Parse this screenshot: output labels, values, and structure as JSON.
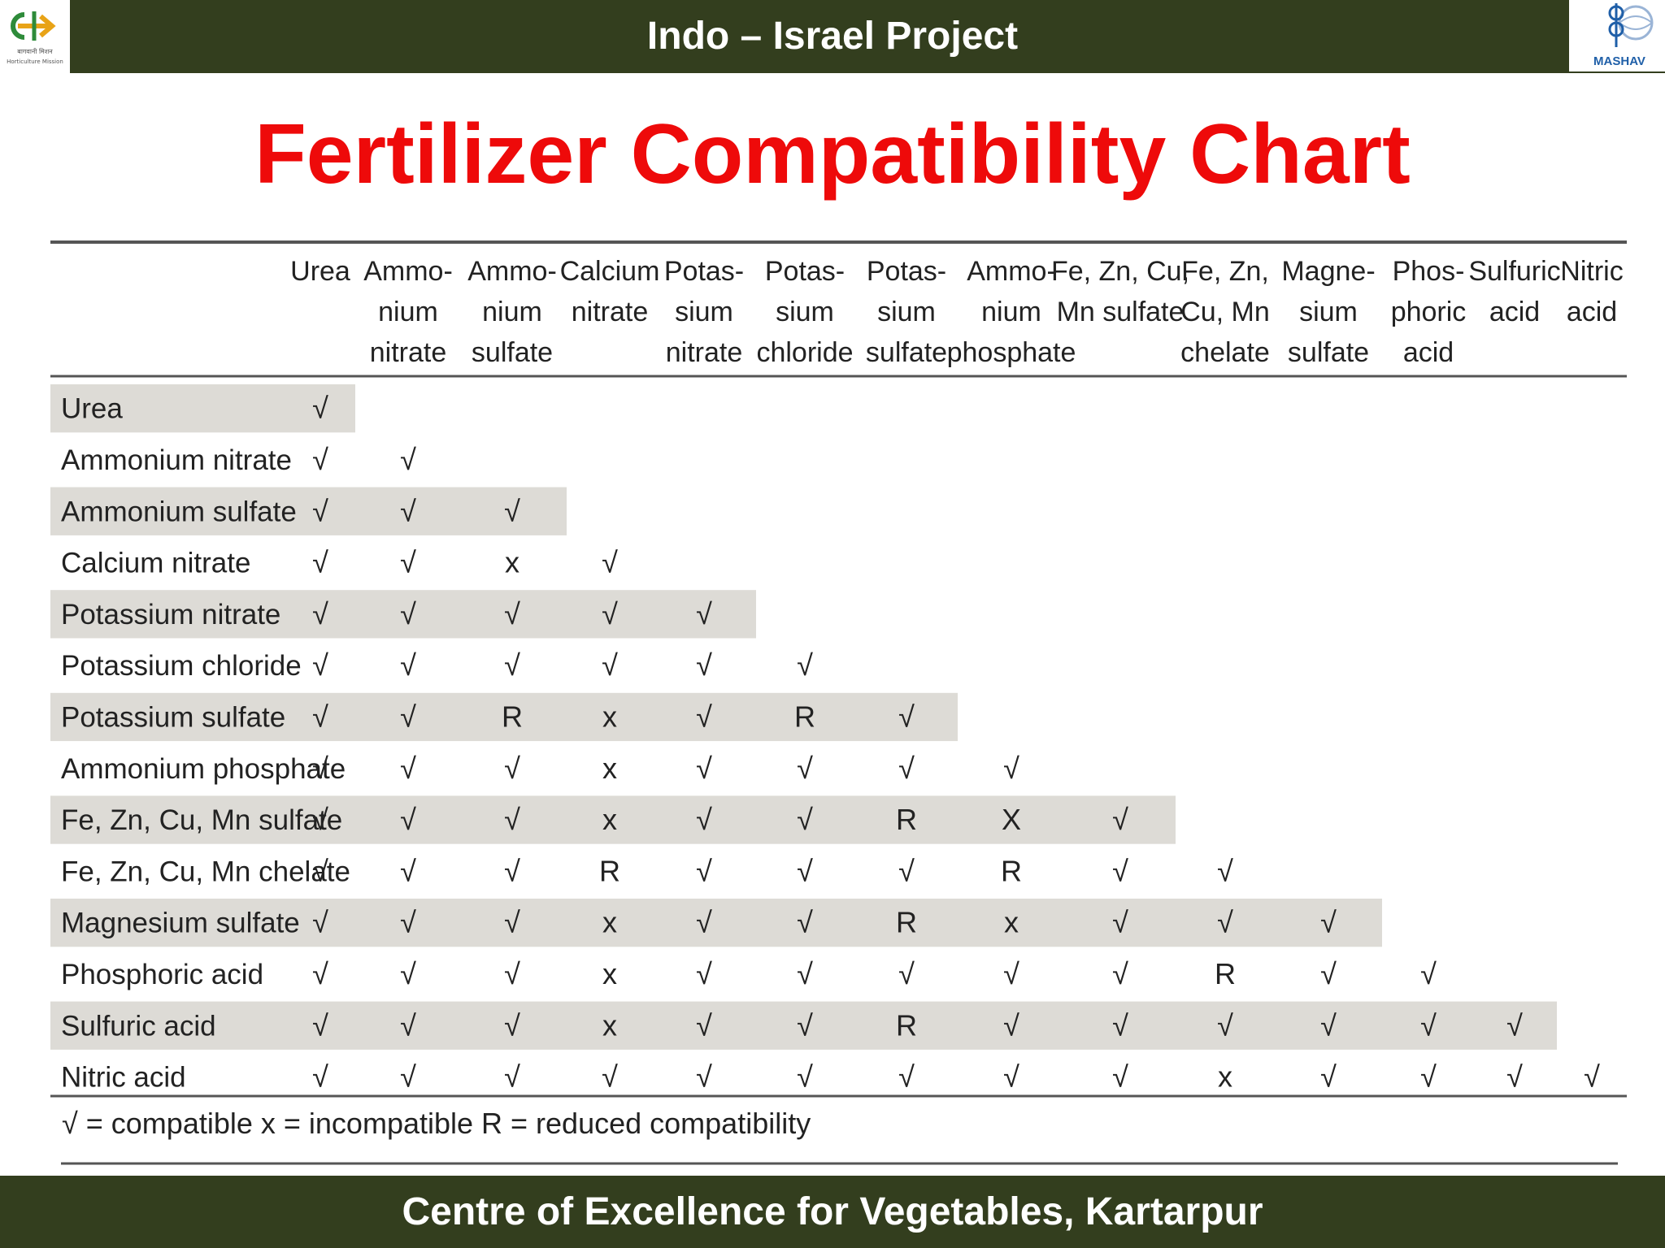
{
  "header": {
    "title": "Indo – Israel Project",
    "left_logo_text": "Horticulture Mission",
    "right_logo_text": "MASHAV"
  },
  "footer": {
    "text": "Centre of Excellence for Vegetables,  Kartarpur"
  },
  "colors": {
    "bar": "#333e1e",
    "title_red": "#ee0a0a",
    "shade": "#dddbd6"
  },
  "chart_data": {
    "type": "table",
    "title": "Fertilizer Compatibility Chart",
    "columns": [
      [
        "Urea"
      ],
      [
        "Ammo-",
        "nium",
        "nitrate"
      ],
      [
        "Ammo-",
        "nium",
        "sulfate"
      ],
      [
        "Calcium",
        "nitrate"
      ],
      [
        "Potas-",
        "sium",
        "nitrate"
      ],
      [
        "Potas-",
        "sium",
        "chloride"
      ],
      [
        "Potas-",
        "sium",
        "sulfate"
      ],
      [
        "Ammo-",
        "nium",
        "phosphate"
      ],
      [
        "Fe, Zn, Cu,",
        "Mn sulfate"
      ],
      [
        "Fe, Zn,",
        "Cu, Mn",
        "chelate"
      ],
      [
        "Magne-",
        "sium",
        "sulfate"
      ],
      [
        "Phos-",
        "phoric",
        "acid"
      ],
      [
        "Sulfuric",
        "acid"
      ],
      [
        "Nitric",
        "acid"
      ]
    ],
    "rows": [
      {
        "label": "Urea",
        "values": [
          "√"
        ]
      },
      {
        "label": "Ammonium nitrate",
        "values": [
          "√",
          "√"
        ]
      },
      {
        "label": "Ammonium sulfate",
        "values": [
          "√",
          "√",
          "√"
        ]
      },
      {
        "label": "Calcium nitrate",
        "values": [
          "√",
          "√",
          "x",
          "√"
        ]
      },
      {
        "label": "Potassium nitrate",
        "values": [
          "√",
          "√",
          "√",
          "√",
          "√"
        ]
      },
      {
        "label": "Potassium chloride",
        "values": [
          "√",
          "√",
          "√",
          "√",
          "√",
          "√"
        ]
      },
      {
        "label": "Potassium sulfate",
        "values": [
          "√",
          "√",
          "R",
          "x",
          "√",
          "R",
          "√"
        ]
      },
      {
        "label": "Ammonium phosphate",
        "values": [
          "√",
          "√",
          "√",
          "x",
          "√",
          "√",
          "√",
          "√"
        ]
      },
      {
        "label": "Fe, Zn, Cu, Mn sulfate",
        "values": [
          "√",
          "√",
          "√",
          "x",
          "√",
          "√",
          "R",
          "X",
          "√"
        ]
      },
      {
        "label": "Fe, Zn, Cu, Mn chelate",
        "values": [
          "√",
          "√",
          "√",
          "R",
          "√",
          "√",
          "√",
          "R",
          "√",
          "√"
        ]
      },
      {
        "label": "Magnesium sulfate",
        "values": [
          "√",
          "√",
          "√",
          "x",
          "√",
          "√",
          "R",
          "x",
          "√",
          "√",
          "√"
        ]
      },
      {
        "label": "Phosphoric acid",
        "values": [
          "√",
          "√",
          "√",
          "x",
          "√",
          "√",
          "√",
          "√",
          "√",
          "R",
          "√",
          "√"
        ]
      },
      {
        "label": "Sulfuric acid",
        "values": [
          "√",
          "√",
          "√",
          "x",
          "√",
          "√",
          "R",
          "√",
          "√",
          "√",
          "√",
          "√",
          "√"
        ]
      },
      {
        "label": "Nitric acid",
        "values": [
          "√",
          "√",
          "√",
          "√",
          "√",
          "√",
          "√",
          "√",
          "√",
          "x",
          "√",
          "√",
          "√",
          "√"
        ]
      }
    ],
    "legend": "√ = compatible   x = incompatible   R = reduced compatibility"
  }
}
